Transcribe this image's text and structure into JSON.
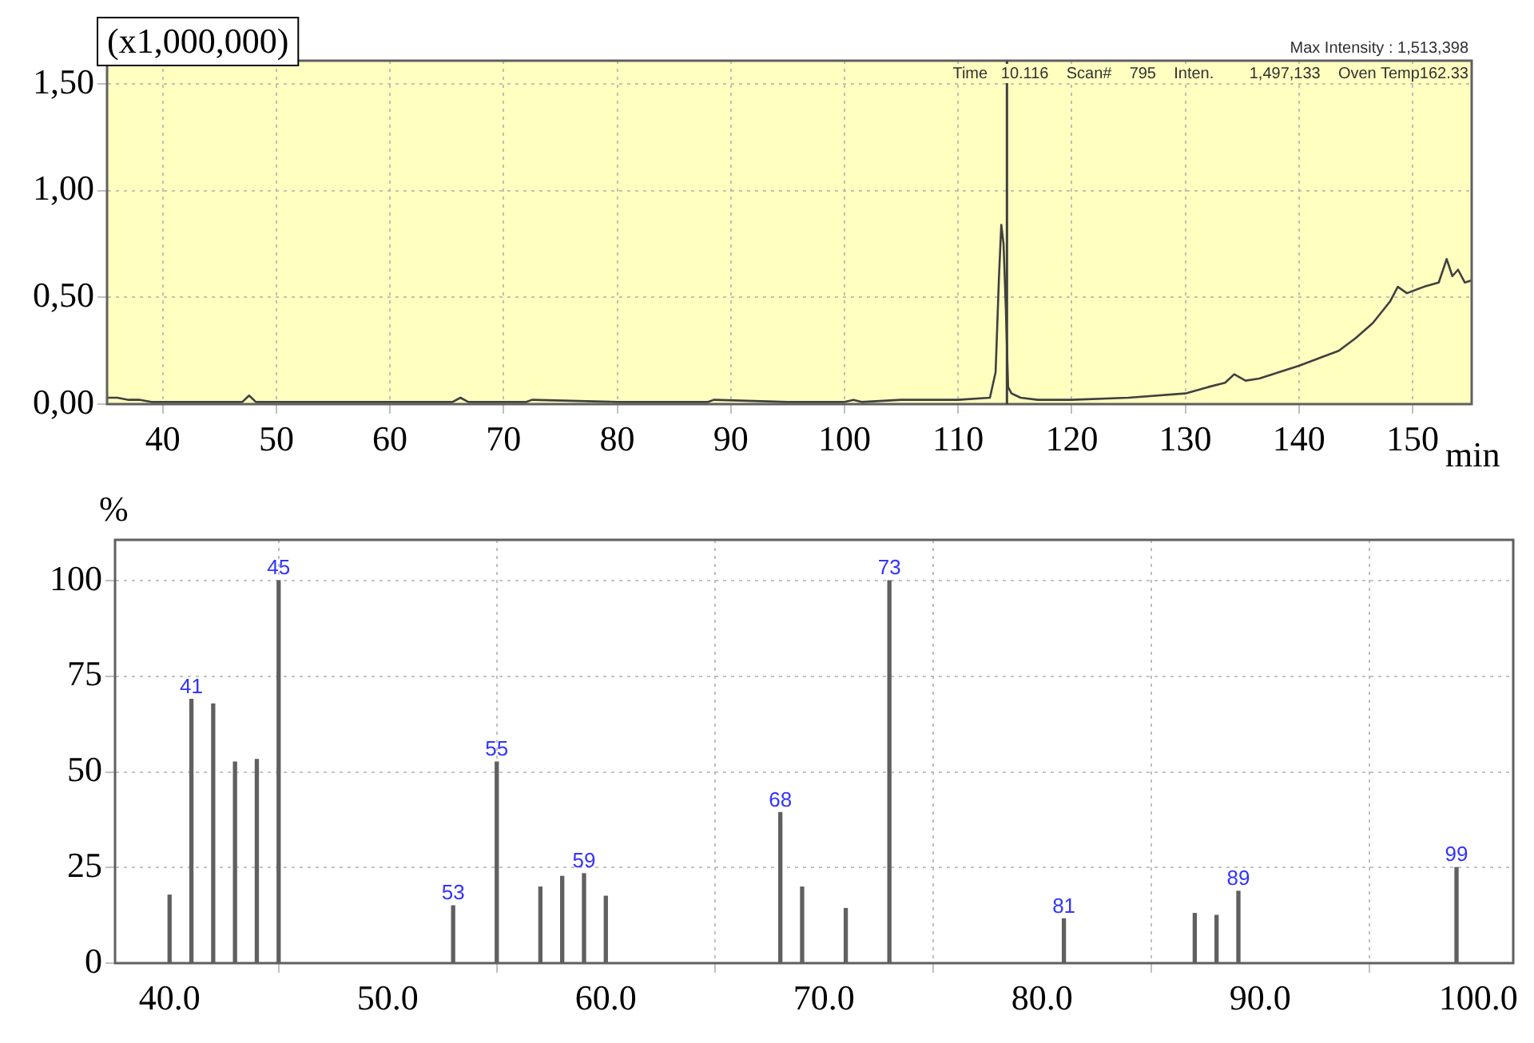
{
  "chart_data": [
    {
      "type": "line",
      "xlabel": "min",
      "ylabel": "(x1,000,000)",
      "annotations": [
        "Max Intensity : 1,513,398",
        "Time   10.116    Scan#    795    Inten.        1,497,133    Oven Temp162.33"
      ],
      "series": [
        {
          "color": "#404040",
          "x": [
            35.1,
            36,
            37,
            38,
            39,
            40,
            45,
            47,
            47.6,
            48.2,
            55,
            60,
            65.5,
            66.2,
            66.9,
            72,
            72.5,
            80,
            88,
            88.5,
            95,
            100,
            100.8,
            101.5,
            105,
            110,
            112.8,
            113.3,
            113.6,
            113.8,
            114.0,
            114.2,
            114.4,
            114.7,
            115.5,
            117,
            120,
            125,
            130,
            132,
            133.5,
            134.3,
            135.3,
            136.5,
            140,
            142,
            143.5,
            145,
            146.5,
            148,
            148.7,
            149.5,
            151,
            152.3,
            153,
            153.5,
            154,
            154.6,
            155.2
          ],
          "values": [
            0.03,
            0.03,
            0.02,
            0.02,
            0.01,
            0.01,
            0.01,
            0.01,
            0.04,
            0.01,
            0.01,
            0.01,
            0.01,
            0.03,
            0.01,
            0.01,
            0.02,
            0.01,
            0.01,
            0.02,
            0.01,
            0.01,
            0.02,
            0.01,
            0.02,
            0.02,
            0.03,
            0.15,
            0.6,
            0.84,
            0.75,
            0.45,
            0.08,
            0.05,
            0.03,
            0.02,
            0.02,
            0.03,
            0.05,
            0.08,
            0.1,
            0.14,
            0.11,
            0.12,
            0.18,
            0.22,
            0.25,
            0.31,
            0.38,
            0.48,
            0.55,
            0.52,
            0.55,
            0.57,
            0.68,
            0.6,
            0.63,
            0.57,
            0.58
          ]
        }
      ],
      "xlim": [
        35.1,
        155.2
      ],
      "xticks": [
        40,
        50,
        60,
        70,
        80,
        90,
        100,
        110,
        120,
        130,
        140,
        150
      ],
      "ylim": [
        0,
        1.61
      ],
      "yticks": [
        {
          "value": 0,
          "label": "0,00"
        },
        {
          "value": 0.5,
          "label": "0,50"
        },
        {
          "value": 1,
          "label": "1,00"
        },
        {
          "value": 1.5,
          "label": "1,50"
        }
      ],
      "ref_lines": [
        {
          "axis": "x",
          "value": 114.3,
          "color": "#404040"
        }
      ],
      "grid": true,
      "legend": false,
      "marker": "none",
      "line_style": "solid"
    },
    {
      "type": "bar",
      "ylabel": "%",
      "x": [
        40,
        41,
        42,
        43,
        44,
        45,
        53,
        55,
        57,
        58,
        59,
        60,
        68,
        69,
        71,
        73,
        81,
        87,
        88,
        89,
        99
      ],
      "values": [
        17.8,
        69,
        67.8,
        52.6,
        53.3,
        100,
        15,
        52.6,
        19.9,
        22.7,
        23.4,
        17.5,
        39.4,
        19.9,
        14.3,
        100,
        11.6,
        13,
        12.5,
        18.8,
        25
      ],
      "annotations": [
        {
          "text": "41",
          "x": 41,
          "y": 69
        },
        {
          "text": "45",
          "x": 45,
          "y": 100
        },
        {
          "text": "53",
          "x": 53,
          "y": 15
        },
        {
          "text": "55",
          "x": 55,
          "y": 52.6
        },
        {
          "text": "59",
          "x": 59,
          "y": 23.4
        },
        {
          "text": "68",
          "x": 68,
          "y": 39.4
        },
        {
          "text": "73",
          "x": 73,
          "y": 100
        },
        {
          "text": "81",
          "x": 81,
          "y": 11.6
        },
        {
          "text": "89",
          "x": 89,
          "y": 18.8
        },
        {
          "text": "99",
          "x": 99,
          "y": 25
        }
      ],
      "color": "#606060",
      "xlim": [
        37.5,
        101.6
      ],
      "xticks": [
        {
          "value": 40,
          "label": "40.0"
        },
        {
          "value": 50,
          "label": "50.0"
        },
        {
          "value": 60,
          "label": "60.0"
        },
        {
          "value": 70,
          "label": "70.0"
        },
        {
          "value": 80,
          "label": "80.0"
        },
        {
          "value": 90,
          "label": "90.0"
        },
        {
          "value": 100,
          "label": "100.0"
        }
      ],
      "ylim": [
        0,
        110.7
      ],
      "yticks": [
        0,
        25,
        50,
        75,
        100
      ],
      "grid": true,
      "legend": false
    }
  ]
}
